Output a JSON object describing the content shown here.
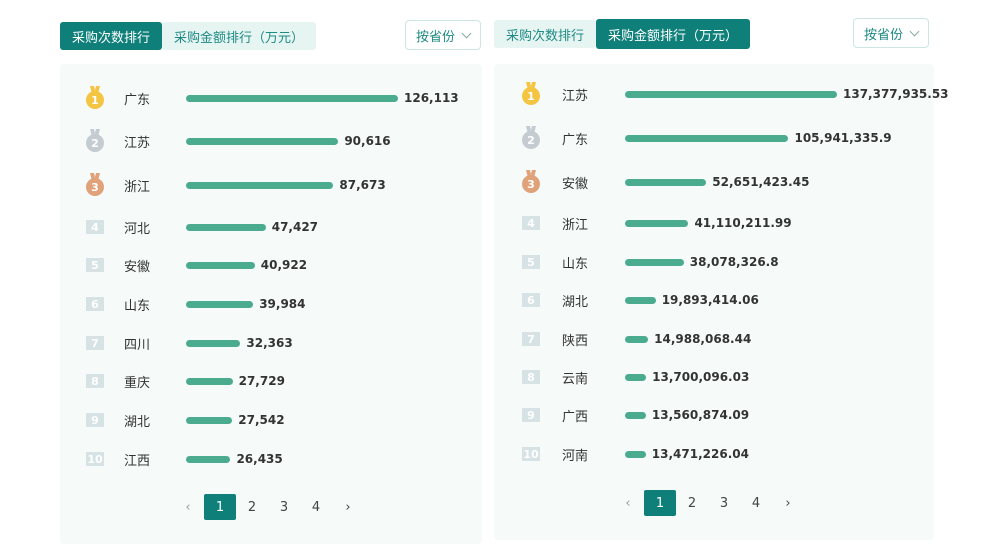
{
  "left": {
    "tabs": [
      {
        "label": "采购次数排行",
        "active": true
      },
      {
        "label": "采购金额排行（万元）",
        "active": false
      }
    ],
    "filter": {
      "label": "按省份"
    },
    "rows": [
      {
        "rank": "1",
        "province": "广东",
        "value": "126,113",
        "num": 126113
      },
      {
        "rank": "2",
        "province": "江苏",
        "value": "90,616",
        "num": 90616
      },
      {
        "rank": "3",
        "province": "浙江",
        "value": "87,673",
        "num": 87673
      },
      {
        "rank": "4",
        "province": "河北",
        "value": "47,427",
        "num": 47427
      },
      {
        "rank": "5",
        "province": "安徽",
        "value": "40,922",
        "num": 40922
      },
      {
        "rank": "6",
        "province": "山东",
        "value": "39,984",
        "num": 39984
      },
      {
        "rank": "7",
        "province": "四川",
        "value": "32,363",
        "num": 32363
      },
      {
        "rank": "8",
        "province": "重庆",
        "value": "27,729",
        "num": 27729
      },
      {
        "rank": "9",
        "province": "湖北",
        "value": "27,542",
        "num": 27542
      },
      {
        "rank": "10",
        "province": "江西",
        "value": "26,435",
        "num": 26435
      }
    ],
    "pager": {
      "prev": "‹",
      "pages": [
        "1",
        "2",
        "3",
        "4"
      ],
      "current": "1",
      "next": "›"
    }
  },
  "right": {
    "tabs": [
      {
        "label": "采购次数排行",
        "active": false
      },
      {
        "label": "采购金额排行（万元）",
        "active": true
      }
    ],
    "filter": {
      "label": "按省份"
    },
    "rows": [
      {
        "rank": "1",
        "province": "江苏",
        "value": "137,377,935.53",
        "num": 137377935.53
      },
      {
        "rank": "2",
        "province": "广东",
        "value": "105,941,335.9",
        "num": 105941335.9
      },
      {
        "rank": "3",
        "province": "安徽",
        "value": "52,651,423.45",
        "num": 52651423.45
      },
      {
        "rank": "4",
        "province": "浙江",
        "value": "41,110,211.99",
        "num": 41110211.99
      },
      {
        "rank": "5",
        "province": "山东",
        "value": "38,078,326.8",
        "num": 38078326.8
      },
      {
        "rank": "6",
        "province": "湖北",
        "value": "19,893,414.06",
        "num": 19893414.06
      },
      {
        "rank": "7",
        "province": "陕西",
        "value": "14,988,068.44",
        "num": 14988068.44
      },
      {
        "rank": "8",
        "province": "云南",
        "value": "13,700,096.03",
        "num": 13700096.03
      },
      {
        "rank": "9",
        "province": "广西",
        "value": "13,560,874.09",
        "num": 13560874.09
      },
      {
        "rank": "10",
        "province": "河南",
        "value": "13,471,226.04",
        "num": 13471226.04
      }
    ],
    "pager": {
      "prev": "‹",
      "pages": [
        "1",
        "2",
        "3",
        "4"
      ],
      "current": "1",
      "next": "›"
    }
  },
  "colors": {
    "accent": "#0f7f7a",
    "bar": "#4aab8f",
    "gold": "#f4c542",
    "silver": "#c4ccd2",
    "bronze": "#e0a27a",
    "rank_box": "#d7e2e4"
  }
}
